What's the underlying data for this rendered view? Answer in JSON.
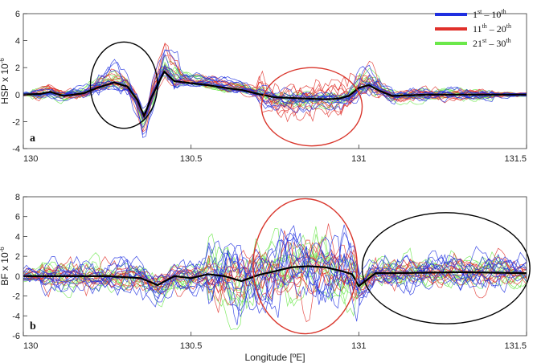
{
  "legend": [
    {
      "base": "1",
      "sup": "st",
      "sep": " – ",
      "base2": "10",
      "sup2": "th",
      "color": "#1f2fe0"
    },
    {
      "base": "11",
      "sup": "th",
      "sep": " – ",
      "base2": "20",
      "sup2": "th",
      "color": "#e0302a"
    },
    {
      "base": "21",
      "sup": "st",
      "sep": " – ",
      "base2": "30",
      "sup2": "th",
      "color": "#6be84a"
    }
  ],
  "chart_data": [
    {
      "panel": "a",
      "type": "line",
      "ylabel": "HSP x 10",
      "ylabel_sup": "-6",
      "xlim": [
        130,
        131.5
      ],
      "ylim": [
        -4,
        6
      ],
      "xticks": [
        130,
        130.5,
        131,
        131.5
      ],
      "xtick_labels": [
        "130",
        "130.5",
        "131",
        "131.5"
      ],
      "yticks": [
        -4,
        -2,
        0,
        2,
        4,
        6
      ],
      "ytick_labels": [
        "-4",
        "-2",
        "0",
        "2",
        "4",
        "6"
      ],
      "mean_curve": {
        "color": "#000000",
        "x": [
          130,
          130.05,
          130.08,
          130.12,
          130.18,
          130.22,
          130.27,
          130.31,
          130.34,
          130.36,
          130.38,
          130.4,
          130.42,
          130.45,
          130.5,
          130.55,
          130.6,
          130.65,
          130.7,
          130.75,
          130.8,
          130.85,
          130.9,
          130.94,
          130.97,
          131.0,
          131.03,
          131.06,
          131.1,
          131.2,
          131.3,
          131.4,
          131.5
        ],
        "y": [
          0.0,
          0.05,
          0.2,
          -0.1,
          0.1,
          0.5,
          0.9,
          0.6,
          -0.4,
          -1.6,
          -0.3,
          0.7,
          1.7,
          1.0,
          0.85,
          0.7,
          0.5,
          0.35,
          0.05,
          -0.2,
          -0.25,
          -0.3,
          -0.35,
          -0.3,
          -0.1,
          0.5,
          0.7,
          0.3,
          -0.1,
          0.0,
          0.0,
          0.0,
          0.0
        ]
      },
      "ellipses": [
        {
          "color": "#000000",
          "cx": 130.3,
          "cy": 0.7,
          "rx": 0.1,
          "ry": 3.2
        },
        {
          "color": "#d9362c",
          "cx": 130.86,
          "cy": -0.9,
          "rx": 0.15,
          "ry": 2.9
        }
      ],
      "series_note": "30 ensemble members (1st–10th blue, 11th–20th red, 21st–30th green) drawn as thin lines around the mean"
    },
    {
      "panel": "b",
      "type": "line",
      "ylabel": "BF x 10",
      "ylabel_sup": "-6",
      "xlabel": "Longitude [ºE]",
      "xlim": [
        130,
        131.5
      ],
      "ylim": [
        -6,
        8
      ],
      "xticks": [
        130,
        130.5,
        131,
        131.5
      ],
      "xtick_labels": [
        "130",
        "130.5",
        "131",
        "131.5"
      ],
      "yticks": [
        -6,
        -4,
        -2,
        0,
        2,
        4,
        6,
        8
      ],
      "ytick_labels": [
        "-6",
        "-4",
        "-2",
        "0",
        "2",
        "4",
        "6",
        "8"
      ],
      "mean_curve": {
        "color": "#000000",
        "x": [
          130,
          130.05,
          130.1,
          130.15,
          130.2,
          130.25,
          130.3,
          130.35,
          130.4,
          130.45,
          130.5,
          130.55,
          130.6,
          130.65,
          130.7,
          130.75,
          130.8,
          130.85,
          130.9,
          130.95,
          130.98,
          131.0,
          131.05,
          131.1,
          131.2,
          131.3,
          131.4,
          131.5
        ],
        "y": [
          0.0,
          0.0,
          0.0,
          0.0,
          0.0,
          0.0,
          -0.1,
          -0.2,
          -0.9,
          0.0,
          -0.2,
          0.2,
          0.0,
          -0.5,
          0.1,
          0.5,
          0.9,
          1.0,
          0.9,
          0.5,
          0.2,
          -1.0,
          0.3,
          0.3,
          0.35,
          0.4,
          0.35,
          0.3
        ]
      },
      "ellipses": [
        {
          "color": "#d9362c",
          "cx": 130.84,
          "cy": 1.0,
          "rx": 0.155,
          "ry": 6.8
        },
        {
          "color": "#000000",
          "cx": 131.26,
          "cy": 0.8,
          "rx": 0.25,
          "ry": 5.6
        }
      ],
      "series_note": "30 ensemble members (1st–10th blue, 11th–20th red, 21st–30th green) drawn as thin lines around the mean"
    }
  ]
}
